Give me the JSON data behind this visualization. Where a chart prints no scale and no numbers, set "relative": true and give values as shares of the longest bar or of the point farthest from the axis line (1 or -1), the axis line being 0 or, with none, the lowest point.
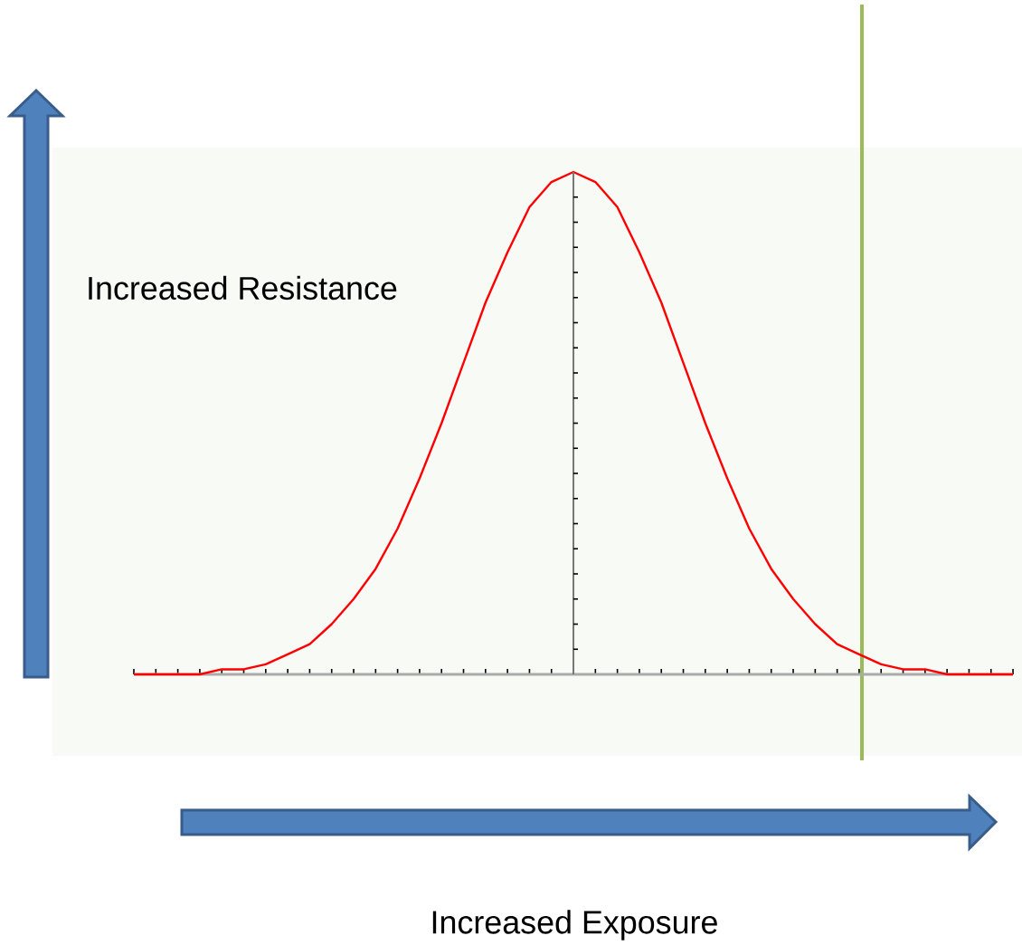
{
  "chart_data": {
    "type": "line",
    "relative": true,
    "ylabel": "Increased Resistance",
    "annotations": [
      "Increased Exposure"
    ],
    "categories": [
      null,
      null,
      null,
      null,
      null,
      null,
      null,
      null,
      null,
      null,
      null,
      null,
      null,
      null,
      null,
      null,
      null,
      null,
      null,
      null,
      null,
      null,
      null,
      null,
      null,
      null,
      null,
      null,
      null,
      null,
      null,
      null,
      null,
      null,
      null,
      null,
      null,
      null,
      null,
      null,
      null
    ],
    "series": [
      {
        "color": "#ff0000",
        "values": [
          0,
          0,
          0,
          0,
          0.01,
          0.01,
          0.02,
          0.04,
          0.06,
          0.1,
          0.15,
          0.21,
          0.29,
          0.39,
          0.5,
          0.62,
          0.74,
          0.84,
          0.93,
          0.98,
          1,
          0.98,
          0.93,
          0.84,
          0.74,
          0.62,
          0.5,
          0.39,
          0.29,
          0.21,
          0.15,
          0.1,
          0.06,
          0.04,
          0.02,
          0.01,
          0.01,
          0,
          0,
          0,
          0
        ]
      }
    ],
    "marker": "none",
    "line_style": "solid"
  }
}
